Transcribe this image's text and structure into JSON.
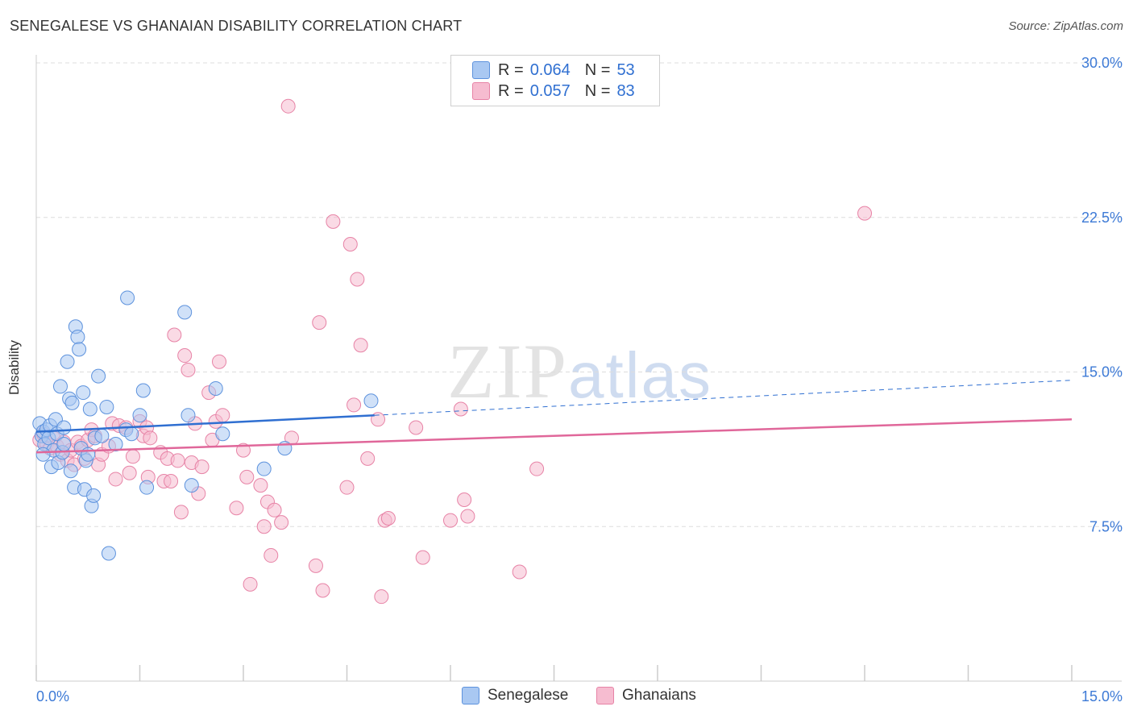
{
  "header": {
    "title": "SENEGALESE VS GHANAIAN DISABILITY CORRELATION CHART",
    "source": "Source: ZipAtlas.com"
  },
  "watermark": {
    "zip": "ZIP",
    "atlas": "atlas"
  },
  "legend": {
    "rows": [
      {
        "r_label": "R =",
        "r_value": "0.064",
        "n_label": "N =",
        "n_value": "53"
      },
      {
        "r_label": "R =",
        "r_value": "0.057",
        "n_label": "N =",
        "n_value": "83"
      }
    ]
  },
  "bottom_legend": {
    "items": [
      {
        "label": "Senegalese"
      },
      {
        "label": "Ghanaians"
      }
    ]
  },
  "colors": {
    "senegalese_fill": "#a9c8f2",
    "senegalese_stroke": "#5d92dd",
    "senegalese_line": "#2f6fd1",
    "ghanaian_fill": "#f6bcd0",
    "ghanaian_stroke": "#e783a6",
    "ghanaian_line": "#e0679a",
    "axis_text": "#3d7ad6",
    "grid": "#dddddd"
  },
  "chart_data": {
    "type": "scatter",
    "title": "SENEGALESE VS GHANAIAN DISABILITY CORRELATION CHART",
    "xlabel": "",
    "ylabel": "Disability",
    "xlim": [
      0,
      15
    ],
    "ylim": [
      0,
      30
    ],
    "x_tick_labels": [
      "0.0%",
      "15.0%"
    ],
    "y_ticks": [
      7.5,
      15.0,
      22.5,
      30.0
    ],
    "y_tick_labels": [
      "7.5%",
      "15.0%",
      "22.5%",
      "30.0%"
    ],
    "grid": "horizontal dashed",
    "series": [
      {
        "name": "Senegalese",
        "r": 0.064,
        "n": 53,
        "trend": {
          "x": [
            0,
            4.9
          ],
          "y": [
            12.1,
            12.9
          ],
          "dashed_extension": {
            "x": [
              4.9,
              15
            ],
            "y": [
              12.9,
              14.6
            ]
          }
        },
        "points": [
          [
            0.05,
            12.5
          ],
          [
            0.08,
            11.9
          ],
          [
            0.1,
            12.1
          ],
          [
            0.12,
            11.5
          ],
          [
            0.15,
            12.2
          ],
          [
            0.18,
            11.8
          ],
          [
            0.2,
            12.4
          ],
          [
            0.22,
            10.4
          ],
          [
            0.25,
            11.2
          ],
          [
            0.28,
            12.7
          ],
          [
            0.3,
            12.0
          ],
          [
            0.32,
            10.6
          ],
          [
            0.35,
            14.3
          ],
          [
            0.38,
            11.1
          ],
          [
            0.4,
            12.3
          ],
          [
            0.45,
            15.5
          ],
          [
            0.48,
            13.7
          ],
          [
            0.5,
            10.2
          ],
          [
            0.52,
            13.5
          ],
          [
            0.55,
            9.4
          ],
          [
            0.57,
            17.2
          ],
          [
            0.6,
            16.7
          ],
          [
            0.62,
            16.1
          ],
          [
            0.65,
            11.3
          ],
          [
            0.68,
            14.0
          ],
          [
            0.7,
            9.3
          ],
          [
            0.72,
            10.7
          ],
          [
            0.75,
            11.0
          ],
          [
            0.78,
            13.2
          ],
          [
            0.8,
            8.5
          ],
          [
            0.83,
            9.0
          ],
          [
            0.85,
            11.8
          ],
          [
            0.9,
            14.8
          ],
          [
            0.95,
            11.9
          ],
          [
            1.02,
            13.3
          ],
          [
            1.05,
            6.2
          ],
          [
            1.15,
            11.5
          ],
          [
            1.3,
            12.2
          ],
          [
            1.32,
            18.6
          ],
          [
            1.38,
            12.0
          ],
          [
            1.5,
            12.9
          ],
          [
            1.55,
            14.1
          ],
          [
            1.6,
            9.4
          ],
          [
            2.15,
            17.9
          ],
          [
            2.2,
            12.9
          ],
          [
            2.25,
            9.5
          ],
          [
            2.6,
            14.2
          ],
          [
            2.7,
            12.0
          ],
          [
            3.3,
            10.3
          ],
          [
            3.6,
            11.3
          ],
          [
            4.85,
            13.6
          ],
          [
            0.1,
            11.0
          ],
          [
            0.4,
            11.5
          ]
        ]
      },
      {
        "name": "Ghanaians",
        "r": 0.057,
        "n": 83,
        "trend": {
          "x": [
            0,
            15
          ],
          "y": [
            11.1,
            12.7
          ]
        },
        "points": [
          [
            0.05,
            11.7
          ],
          [
            0.1,
            12.0
          ],
          [
            0.15,
            11.5
          ],
          [
            0.2,
            11.3
          ],
          [
            0.25,
            11.8
          ],
          [
            0.3,
            11.4
          ],
          [
            0.35,
            11.0
          ],
          [
            0.4,
            11.6
          ],
          [
            0.45,
            10.7
          ],
          [
            0.5,
            11.2
          ],
          [
            0.55,
            10.5
          ],
          [
            0.6,
            11.6
          ],
          [
            0.65,
            11.4
          ],
          [
            0.7,
            10.8
          ],
          [
            0.75,
            11.7
          ],
          [
            0.8,
            12.2
          ],
          [
            0.85,
            11.9
          ],
          [
            0.9,
            10.5
          ],
          [
            0.95,
            11.0
          ],
          [
            1.05,
            11.4
          ],
          [
            1.1,
            12.5
          ],
          [
            1.15,
            9.8
          ],
          [
            1.2,
            12.4
          ],
          [
            1.3,
            12.3
          ],
          [
            1.35,
            10.1
          ],
          [
            1.4,
            10.9
          ],
          [
            1.5,
            12.6
          ],
          [
            1.55,
            11.9
          ],
          [
            1.6,
            12.3
          ],
          [
            1.62,
            9.9
          ],
          [
            1.65,
            11.8
          ],
          [
            1.8,
            11.1
          ],
          [
            1.85,
            9.7
          ],
          [
            1.9,
            10.8
          ],
          [
            1.95,
            9.7
          ],
          [
            2.0,
            16.8
          ],
          [
            2.05,
            10.7
          ],
          [
            2.1,
            8.2
          ],
          [
            2.15,
            15.8
          ],
          [
            2.2,
            15.1
          ],
          [
            2.25,
            10.6
          ],
          [
            2.3,
            12.5
          ],
          [
            2.35,
            9.1
          ],
          [
            2.4,
            10.4
          ],
          [
            2.5,
            14.0
          ],
          [
            2.55,
            11.7
          ],
          [
            2.6,
            12.6
          ],
          [
            2.65,
            15.5
          ],
          [
            2.7,
            12.9
          ],
          [
            2.9,
            8.4
          ],
          [
            3.0,
            11.2
          ],
          [
            3.05,
            9.9
          ],
          [
            3.1,
            4.7
          ],
          [
            3.25,
            9.5
          ],
          [
            3.3,
            7.5
          ],
          [
            3.35,
            8.7
          ],
          [
            3.4,
            6.1
          ],
          [
            3.45,
            8.3
          ],
          [
            3.55,
            7.7
          ],
          [
            3.65,
            27.9
          ],
          [
            3.7,
            11.8
          ],
          [
            4.05,
            5.6
          ],
          [
            4.1,
            17.4
          ],
          [
            4.15,
            4.4
          ],
          [
            4.3,
            22.3
          ],
          [
            4.5,
            9.4
          ],
          [
            4.55,
            21.2
          ],
          [
            4.6,
            13.4
          ],
          [
            4.65,
            19.5
          ],
          [
            4.7,
            16.3
          ],
          [
            4.8,
            10.8
          ],
          [
            4.95,
            12.7
          ],
          [
            5.0,
            4.1
          ],
          [
            5.05,
            7.8
          ],
          [
            5.1,
            7.9
          ],
          [
            5.5,
            12.3
          ],
          [
            5.6,
            6.0
          ],
          [
            6.0,
            7.8
          ],
          [
            6.15,
            13.2
          ],
          [
            6.2,
            8.8
          ],
          [
            6.25,
            8.0
          ],
          [
            7.0,
            5.3
          ],
          [
            7.25,
            10.3
          ],
          [
            12.0,
            22.7
          ]
        ]
      }
    ]
  }
}
